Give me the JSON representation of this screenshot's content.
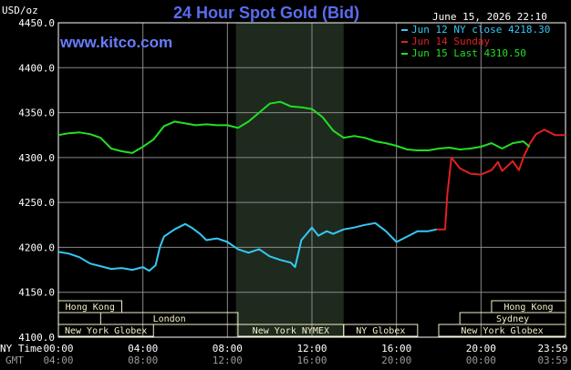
{
  "header": {
    "unit": "USD/oz",
    "title": "24 Hour Spot Gold (Bid)",
    "datetime": "June 15, 2026 22:10",
    "site": "www.kitco.com"
  },
  "legend": [
    {
      "label": "Jun 12 NY close 4218.30",
      "color": "#35c8f4"
    },
    {
      "label": "Jun 14 Sunday",
      "color": "#e02020"
    },
    {
      "label": "Jun 15 Last 4310.50",
      "color": "#22e022"
    }
  ],
  "colors": {
    "background": "#000000",
    "frame": "#ffffff",
    "grid": "#8a8a8a",
    "shade": "#1e2a1e",
    "session_box": "#f4f0c8",
    "session_text": "#000000",
    "title": "#5a6cf0",
    "site": "#6a7cff"
  },
  "axis_rows": {
    "ny_label": "NY Time",
    "gmt_label": "GMT"
  },
  "sessions": [
    {
      "label": "Hong Kong",
      "start_hr": 0,
      "end_hr": 3,
      "row": 0
    },
    {
      "label": "London",
      "start_hr": 2,
      "end_hr": 8.5,
      "row": 1
    },
    {
      "label": "New York Globex",
      "start_hr": 0,
      "end_hr": 4.5,
      "row": 2
    },
    {
      "label": "New York NYMEX",
      "start_hr": 8.5,
      "end_hr": 13.5,
      "row": 2
    },
    {
      "label": "NY Globex",
      "start_hr": 13.5,
      "end_hr": 17,
      "row": 2
    },
    {
      "label": "Hong Kong",
      "start_hr": 20.5,
      "end_hr": 24,
      "row": 0
    },
    {
      "label": "Sydney",
      "start_hr": 19,
      "end_hr": 24,
      "row": 1
    },
    {
      "label": "New York Globex",
      "start_hr": 18,
      "end_hr": 24,
      "row": 2
    }
  ],
  "chart_data": {
    "type": "line",
    "title": "24 Hour Spot Gold (Bid)",
    "ylabel": "USD/oz",
    "ylim": [
      4100,
      4450
    ],
    "y_ticks": [
      4100.0,
      4150.0,
      4200.0,
      4250.0,
      4300.0,
      4350.0,
      4400.0,
      4450.0
    ],
    "y_tick_labels": [
      "4100.0",
      "4150.0",
      "4200.0",
      "4250.0",
      "4300.0",
      "4350.0",
      "4400.0",
      "4450.0"
    ],
    "x_unit": "hours after 00:00 NY time",
    "xlim": [
      0,
      24
    ],
    "x_ticks": [
      0,
      4,
      8,
      12,
      16,
      20,
      24
    ],
    "x_tick_labels_ny": [
      "00:00",
      "04:00",
      "08:00",
      "12:00",
      "16:00",
      "20:00",
      "23:59"
    ],
    "x_tick_labels_gmt": [
      "04:00",
      "08:00",
      "12:00",
      "16:00",
      "20:00",
      "00:00",
      "03:59"
    ],
    "shaded_x_range": [
      8.4,
      13.5
    ],
    "grid": true,
    "series": [
      {
        "name": "Jun 12 NY close 4218.30",
        "color": "#35c8f4",
        "x": [
          0,
          0.5,
          1,
          1.5,
          2,
          2.5,
          3,
          3.5,
          4,
          4.3,
          4.6,
          4.8,
          5,
          5.5,
          6,
          6.3,
          6.7,
          7,
          7.5,
          8,
          8.5,
          9,
          9.5,
          10,
          10.5,
          11,
          11.2,
          11.5,
          12,
          12.3,
          12.7,
          13,
          13.5,
          14,
          14.5,
          15,
          15.5,
          16,
          16.5,
          17,
          17.5,
          17.9
        ],
        "y": [
          4195,
          4193,
          4189,
          4182,
          4179,
          4176,
          4177,
          4175,
          4178,
          4174,
          4180,
          4200,
          4212,
          4220,
          4226,
          4222,
          4215,
          4208,
          4210,
          4206,
          4198,
          4194,
          4198,
          4190,
          4186,
          4183,
          4178,
          4208,
          4222,
          4213,
          4218,
          4215,
          4220,
          4222,
          4225,
          4227,
          4218,
          4206,
          4212,
          4218,
          4218,
          4220
        ]
      },
      {
        "name": "Jun 14 Sunday",
        "color": "#e02020",
        "x": [
          17.9,
          18.3,
          18.4,
          18.6,
          19,
          19.5,
          20,
          20.5,
          20.8,
          21,
          21.5,
          21.8,
          22,
          22.3,
          22.6,
          23,
          23.5,
          24
        ],
        "y": [
          4220,
          4220,
          4258,
          4300,
          4288,
          4282,
          4281,
          4286,
          4295,
          4285,
          4296,
          4286,
          4300,
          4315,
          4326,
          4331,
          4325,
          4325
        ]
      },
      {
        "name": "Jun 15 Last 4310.50",
        "color": "#22e022",
        "x": [
          0,
          0.5,
          1,
          1.5,
          2,
          2.5,
          3,
          3.5,
          4,
          4.5,
          5,
          5.5,
          6,
          6.5,
          7,
          7.5,
          8,
          8.5,
          9,
          9.5,
          10,
          10.5,
          11,
          11.5,
          12,
          12.5,
          13,
          13.5,
          14,
          14.5,
          15,
          15.5,
          16,
          16.5,
          17,
          17.5,
          18,
          18.5,
          19,
          19.5,
          20,
          20.5,
          21,
          21.5,
          22,
          22.3
        ],
        "y": [
          4325,
          4327,
          4328,
          4326,
          4322,
          4310,
          4307,
          4305,
          4312,
          4320,
          4335,
          4340,
          4338,
          4336,
          4337,
          4336,
          4336,
          4333,
          4340,
          4350,
          4360,
          4362,
          4357,
          4356,
          4354,
          4345,
          4330,
          4322,
          4324,
          4322,
          4318,
          4316,
          4313,
          4309,
          4308,
          4308,
          4310,
          4311,
          4309,
          4310,
          4312,
          4316,
          4310,
          4316,
          4318,
          4312
        ]
      }
    ]
  }
}
